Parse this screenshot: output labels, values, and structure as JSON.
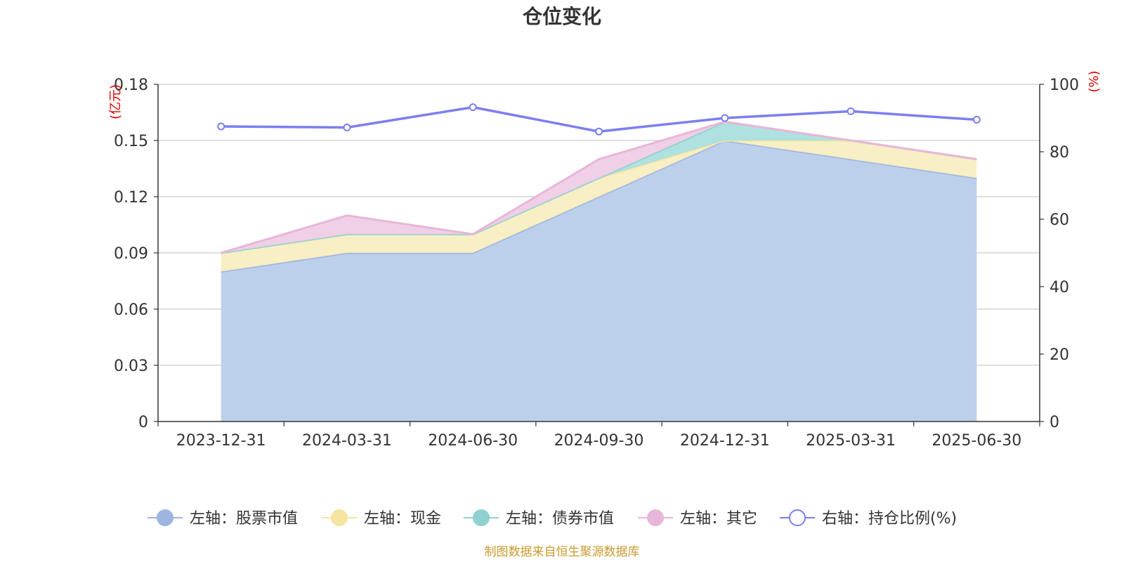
{
  "chart_data": {
    "type": "area",
    "title": "仓位变化",
    "categories": [
      "2023-12-31",
      "2024-03-31",
      "2024-06-30",
      "2024-09-30",
      "2024-12-31",
      "2025-03-31",
      "2025-06-30"
    ],
    "left_axis": {
      "unit": "(亿元)",
      "ylim": [
        0,
        0.18
      ],
      "ticks": [
        "0",
        "0.03",
        "0.06",
        "0.09",
        "0.12",
        "0.15",
        "0.18"
      ]
    },
    "right_axis": {
      "unit": "(%)",
      "ylim": [
        0,
        100
      ],
      "ticks": [
        "0",
        "20",
        "40",
        "60",
        "80",
        "100"
      ]
    },
    "stacked_series": [
      {
        "name": "左轴：股票市值",
        "color": "#9db5e0",
        "fill": "#b8cdea",
        "values": [
          0.08,
          0.09,
          0.09,
          0.12,
          0.15,
          0.14,
          0.13
        ]
      },
      {
        "name": "左轴：现金",
        "color": "#f5e3a0",
        "fill": "#f9eec2",
        "values": [
          0.01,
          0.01,
          0.01,
          0.01,
          0.0,
          0.01,
          0.01
        ]
      },
      {
        "name": "左轴：债券市值",
        "color": "#8fd1d1",
        "fill": "#abdfdf",
        "values": [
          0.0,
          0.0,
          0.0,
          0.0,
          0.01,
          0.0,
          0.0
        ]
      },
      {
        "name": "左轴：其它",
        "color": "#e8b6d8",
        "fill": "#efcde5",
        "values": [
          0.0,
          0.01,
          0.0,
          0.01,
          0.0,
          0.0,
          0.0
        ]
      }
    ],
    "line_series": {
      "name": "右轴：持仓比例(%)",
      "color": "#7b7ff0",
      "values": [
        87.5,
        87.2,
        93.2,
        86.0,
        90.0,
        92.0,
        89.5
      ]
    },
    "grid": true,
    "legend_position": "bottom"
  },
  "source_note": "制图数据来自恒生聚源数据库"
}
